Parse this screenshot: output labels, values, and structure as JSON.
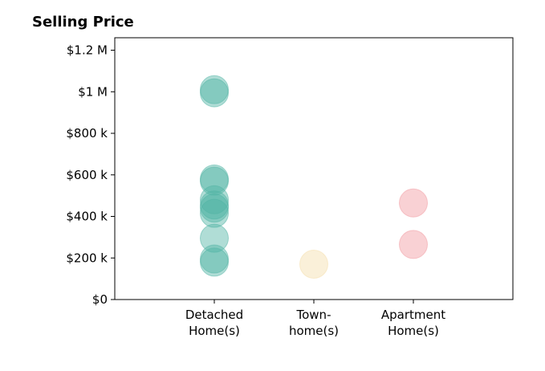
{
  "chart_data": {
    "type": "scatter",
    "title": "Selling Price",
    "categories": [
      "Detached\nHome(s)",
      "Town-\nhome(s)",
      "Apartment\nHome(s)"
    ],
    "y_ticks": [
      0,
      200000,
      400000,
      600000,
      800000,
      1000000,
      1200000
    ],
    "y_tick_labels": [
      "$0",
      "$200 k",
      "$400 k",
      "$600 k",
      "$800 k",
      "$1 M",
      "$1.2 M"
    ],
    "ylim": [
      0,
      1260000
    ],
    "xlim": [
      0,
      4
    ],
    "grid": false,
    "series": [
      {
        "category": "Detached\nHome(s)",
        "color": "#4fb3a3",
        "values": [
          1010000,
          995000,
          580000,
          570000,
          480000,
          455000,
          440000,
          415000,
          295000,
          195000,
          180000
        ]
      },
      {
        "category": "Town-\nhome(s)",
        "color": "#f5deaa",
        "values": [
          170000
        ]
      },
      {
        "category": "Apartment\nHome(s)",
        "color": "#f2999f",
        "values": [
          465000,
          265000
        ]
      }
    ]
  }
}
